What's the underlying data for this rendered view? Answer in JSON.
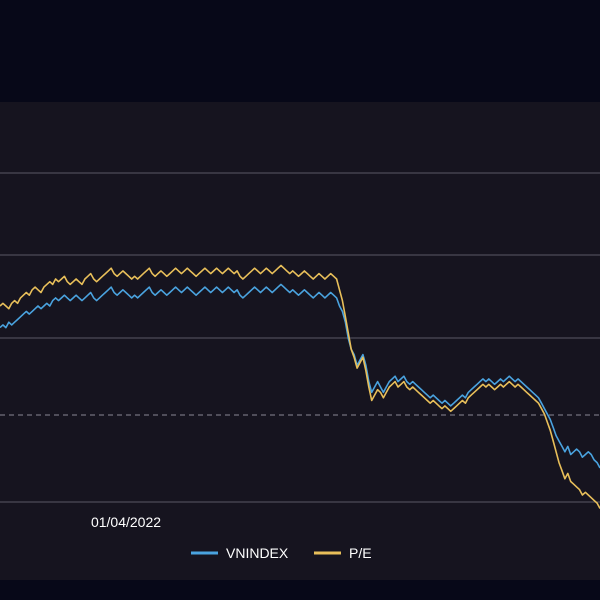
{
  "colors": {
    "page_bg": "#070818",
    "panel_bg": "#16141f",
    "grid": "#5a5866",
    "baseline_dashed": "#8a8894",
    "vnindex": "#4aa3df",
    "pe": "#e8bf5a"
  },
  "chart_data": {
    "type": "line",
    "x_tick_labels": [
      "01/04/2022"
    ],
    "grid": true,
    "legend_position": "bottom-center",
    "series": [
      {
        "name": "VNINDEX",
        "color": "#4aa3df",
        "values": [
          0.38,
          0.37,
          0.38,
          0.36,
          0.37,
          0.36,
          0.35,
          0.34,
          0.33,
          0.32,
          0.33,
          0.32,
          0.31,
          0.3,
          0.31,
          0.3,
          0.29,
          0.3,
          0.28,
          0.27,
          0.28,
          0.27,
          0.26,
          0.27,
          0.28,
          0.27,
          0.26,
          0.27,
          0.28,
          0.27,
          0.26,
          0.25,
          0.27,
          0.28,
          0.27,
          0.26,
          0.25,
          0.24,
          0.23,
          0.25,
          0.26,
          0.25,
          0.24,
          0.25,
          0.26,
          0.27,
          0.26,
          0.27,
          0.26,
          0.25,
          0.24,
          0.23,
          0.25,
          0.26,
          0.25,
          0.24,
          0.25,
          0.26,
          0.25,
          0.24,
          0.23,
          0.24,
          0.25,
          0.24,
          0.23,
          0.24,
          0.25,
          0.26,
          0.25,
          0.24,
          0.23,
          0.24,
          0.25,
          0.24,
          0.23,
          0.24,
          0.25,
          0.24,
          0.23,
          0.24,
          0.25,
          0.24,
          0.26,
          0.27,
          0.26,
          0.25,
          0.24,
          0.23,
          0.24,
          0.25,
          0.24,
          0.23,
          0.24,
          0.25,
          0.24,
          0.23,
          0.22,
          0.23,
          0.24,
          0.25,
          0.24,
          0.25,
          0.26,
          0.25,
          0.24,
          0.25,
          0.26,
          0.27,
          0.26,
          0.25,
          0.26,
          0.27,
          0.26,
          0.25,
          0.26,
          0.27,
          0.3,
          0.32,
          0.36,
          0.42,
          0.46,
          0.48,
          0.52,
          0.5,
          0.48,
          0.52,
          0.58,
          0.62,
          0.6,
          0.58,
          0.6,
          0.62,
          0.6,
          0.58,
          0.57,
          0.56,
          0.58,
          0.57,
          0.56,
          0.58,
          0.59,
          0.58,
          0.59,
          0.6,
          0.61,
          0.62,
          0.63,
          0.64,
          0.63,
          0.64,
          0.65,
          0.66,
          0.65,
          0.66,
          0.67,
          0.66,
          0.65,
          0.64,
          0.63,
          0.64,
          0.62,
          0.61,
          0.6,
          0.59,
          0.58,
          0.57,
          0.58,
          0.57,
          0.58,
          0.59,
          0.58,
          0.57,
          0.58,
          0.57,
          0.56,
          0.57,
          0.58,
          0.57,
          0.58,
          0.59,
          0.6,
          0.61,
          0.62,
          0.63,
          0.64,
          0.66,
          0.68,
          0.7,
          0.72,
          0.75,
          0.78,
          0.8,
          0.82,
          0.84,
          0.82,
          0.85,
          0.84,
          0.83,
          0.84,
          0.86,
          0.85,
          0.84,
          0.85,
          0.87,
          0.88,
          0.9
        ]
      },
      {
        "name": "P/E",
        "color": "#e8bf5a",
        "values": [
          0.3,
          0.29,
          0.3,
          0.31,
          0.29,
          0.28,
          0.29,
          0.27,
          0.26,
          0.25,
          0.26,
          0.24,
          0.23,
          0.24,
          0.25,
          0.23,
          0.22,
          0.21,
          0.22,
          0.2,
          0.21,
          0.2,
          0.19,
          0.21,
          0.22,
          0.21,
          0.2,
          0.21,
          0.22,
          0.2,
          0.19,
          0.18,
          0.2,
          0.21,
          0.2,
          0.19,
          0.18,
          0.17,
          0.16,
          0.18,
          0.19,
          0.18,
          0.17,
          0.18,
          0.19,
          0.2,
          0.19,
          0.2,
          0.19,
          0.18,
          0.17,
          0.16,
          0.18,
          0.19,
          0.18,
          0.17,
          0.18,
          0.19,
          0.18,
          0.17,
          0.16,
          0.17,
          0.18,
          0.17,
          0.16,
          0.17,
          0.18,
          0.19,
          0.18,
          0.17,
          0.16,
          0.17,
          0.18,
          0.17,
          0.16,
          0.17,
          0.18,
          0.17,
          0.16,
          0.17,
          0.18,
          0.17,
          0.19,
          0.2,
          0.19,
          0.18,
          0.17,
          0.16,
          0.17,
          0.18,
          0.17,
          0.16,
          0.17,
          0.18,
          0.17,
          0.16,
          0.15,
          0.16,
          0.17,
          0.18,
          0.17,
          0.18,
          0.19,
          0.18,
          0.17,
          0.18,
          0.19,
          0.2,
          0.19,
          0.18,
          0.19,
          0.2,
          0.19,
          0.18,
          0.19,
          0.2,
          0.24,
          0.28,
          0.34,
          0.4,
          0.46,
          0.49,
          0.53,
          0.51,
          0.49,
          0.54,
          0.6,
          0.65,
          0.63,
          0.61,
          0.62,
          0.64,
          0.62,
          0.6,
          0.59,
          0.58,
          0.6,
          0.59,
          0.58,
          0.6,
          0.61,
          0.6,
          0.61,
          0.62,
          0.63,
          0.64,
          0.65,
          0.66,
          0.65,
          0.66,
          0.67,
          0.68,
          0.67,
          0.68,
          0.69,
          0.68,
          0.67,
          0.66,
          0.65,
          0.66,
          0.64,
          0.63,
          0.62,
          0.61,
          0.6,
          0.59,
          0.6,
          0.59,
          0.6,
          0.61,
          0.6,
          0.59,
          0.6,
          0.59,
          0.58,
          0.59,
          0.6,
          0.59,
          0.6,
          0.61,
          0.62,
          0.63,
          0.64,
          0.65,
          0.66,
          0.68,
          0.7,
          0.73,
          0.76,
          0.8,
          0.84,
          0.88,
          0.91,
          0.94,
          0.92,
          0.95,
          0.96,
          0.97,
          0.98,
          1.0,
          0.99,
          1.0,
          1.01,
          1.02,
          1.03,
          1.05
        ]
      }
    ]
  }
}
